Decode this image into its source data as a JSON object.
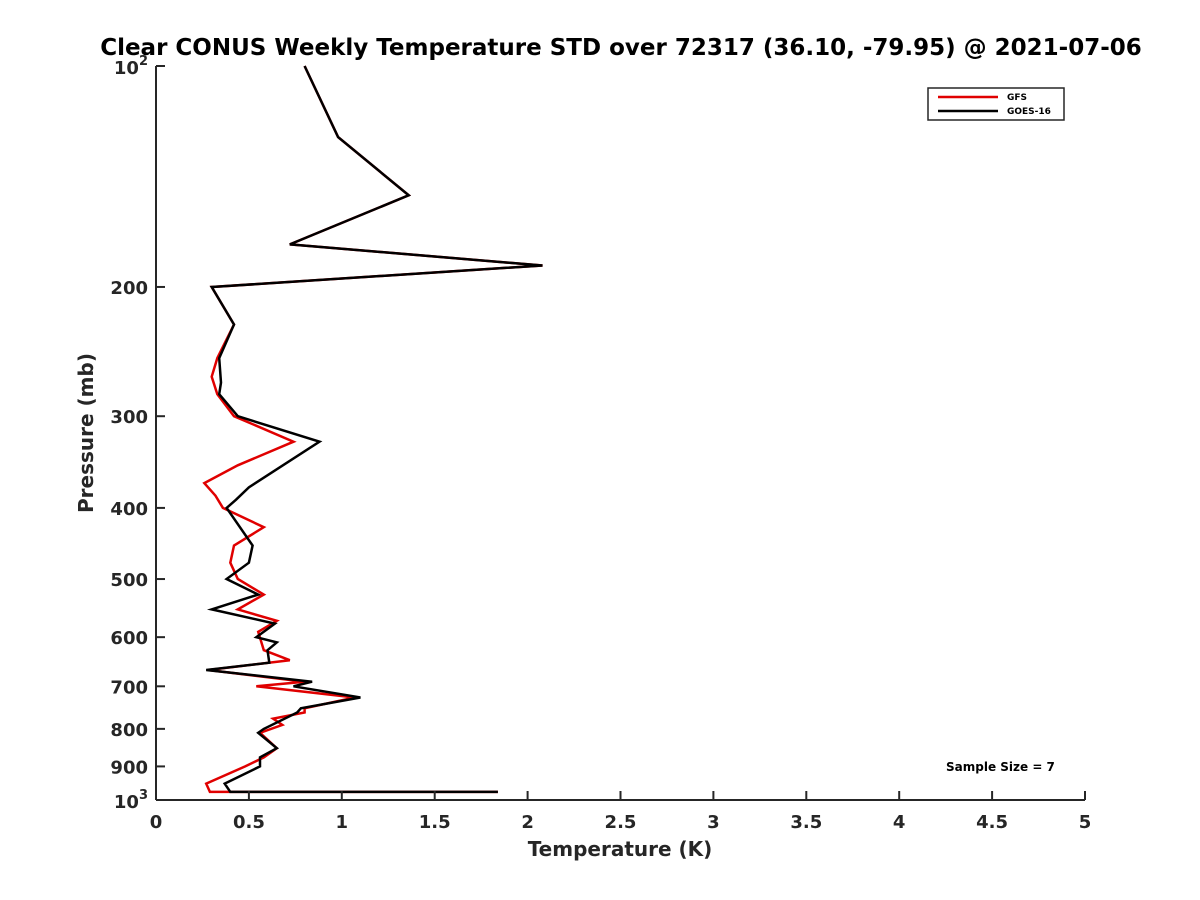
{
  "chart_data": {
    "type": "line",
    "title": "Clear CONUS Weekly Temperature STD over 72317 (36.10, -79.95) @ 2021-07-06",
    "xlabel": "Temperature (K)",
    "ylabel": "Pressure (mb)",
    "xlim": [
      0,
      5
    ],
    "ylim": [
      1000,
      100
    ],
    "y_scale": "log",
    "y_reversed": true,
    "x_ticks": [
      "0",
      "0.5",
      "1",
      "1.5",
      "2",
      "2.5",
      "3",
      "3.5",
      "4",
      "4.5",
      "5"
    ],
    "y_ticks": [
      {
        "value": 100,
        "base": "10",
        "exp": "2"
      },
      {
        "value": 200,
        "label": "200"
      },
      {
        "value": 300,
        "label": "300"
      },
      {
        "value": 400,
        "label": "400"
      },
      {
        "value": 500,
        "label": "500"
      },
      {
        "value": 600,
        "label": "600"
      },
      {
        "value": 700,
        "label": "700"
      },
      {
        "value": 800,
        "label": "800"
      },
      {
        "value": 900,
        "label": "900"
      },
      {
        "value": 1000,
        "base": "10",
        "exp": "3"
      }
    ],
    "legend_position": "top-right",
    "grid": false,
    "annotation": "Sample Size = 7",
    "series": [
      {
        "name": "GFS",
        "color": "#e00000",
        "points": [
          [
            0.8,
            100
          ],
          [
            0.98,
            125
          ],
          [
            1.36,
            150
          ],
          [
            0.72,
            175
          ],
          [
            2.08,
            187
          ],
          [
            0.3,
            200
          ],
          [
            0.42,
            225
          ],
          [
            0.33,
            250
          ],
          [
            0.3,
            265
          ],
          [
            0.33,
            280
          ],
          [
            0.42,
            300
          ],
          [
            0.74,
            325
          ],
          [
            0.44,
            350
          ],
          [
            0.26,
            370
          ],
          [
            0.32,
            385
          ],
          [
            0.36,
            400
          ],
          [
            0.58,
            425
          ],
          [
            0.42,
            450
          ],
          [
            0.4,
            475
          ],
          [
            0.44,
            500
          ],
          [
            0.58,
            525
          ],
          [
            0.44,
            550
          ],
          [
            0.65,
            570
          ],
          [
            0.55,
            590
          ],
          [
            0.58,
            625
          ],
          [
            0.72,
            645
          ],
          [
            0.28,
            665
          ],
          [
            0.8,
            690
          ],
          [
            0.54,
            700
          ],
          [
            1.07,
            725
          ],
          [
            0.8,
            750
          ],
          [
            0.8,
            760
          ],
          [
            0.63,
            775
          ],
          [
            0.68,
            790
          ],
          [
            0.56,
            810
          ],
          [
            0.65,
            850
          ],
          [
            0.58,
            875
          ],
          [
            0.48,
            900
          ],
          [
            0.27,
            950
          ],
          [
            0.29,
            975
          ],
          [
            1.84,
            975
          ]
        ]
      },
      {
        "name": "GOES-16",
        "color": "#000000",
        "points": [
          [
            0.8,
            100
          ],
          [
            0.98,
            125
          ],
          [
            1.36,
            150
          ],
          [
            0.72,
            175
          ],
          [
            2.08,
            187
          ],
          [
            0.3,
            200
          ],
          [
            0.42,
            225
          ],
          [
            0.34,
            250
          ],
          [
            0.35,
            270
          ],
          [
            0.34,
            280
          ],
          [
            0.44,
            300
          ],
          [
            0.88,
            325
          ],
          [
            0.5,
            375
          ],
          [
            0.43,
            390
          ],
          [
            0.38,
            400
          ],
          [
            0.52,
            450
          ],
          [
            0.5,
            475
          ],
          [
            0.38,
            500
          ],
          [
            0.55,
            525
          ],
          [
            0.3,
            550
          ],
          [
            0.64,
            575
          ],
          [
            0.54,
            600
          ],
          [
            0.65,
            610
          ],
          [
            0.6,
            625
          ],
          [
            0.61,
            650
          ],
          [
            0.27,
            665
          ],
          [
            0.84,
            690
          ],
          [
            0.74,
            700
          ],
          [
            1.1,
            725
          ],
          [
            0.78,
            750
          ],
          [
            0.76,
            760
          ],
          [
            0.58,
            800
          ],
          [
            0.55,
            810
          ],
          [
            0.65,
            850
          ],
          [
            0.56,
            875
          ],
          [
            0.56,
            900
          ],
          [
            0.37,
            950
          ],
          [
            0.4,
            975
          ],
          [
            1.84,
            975
          ]
        ]
      }
    ]
  }
}
